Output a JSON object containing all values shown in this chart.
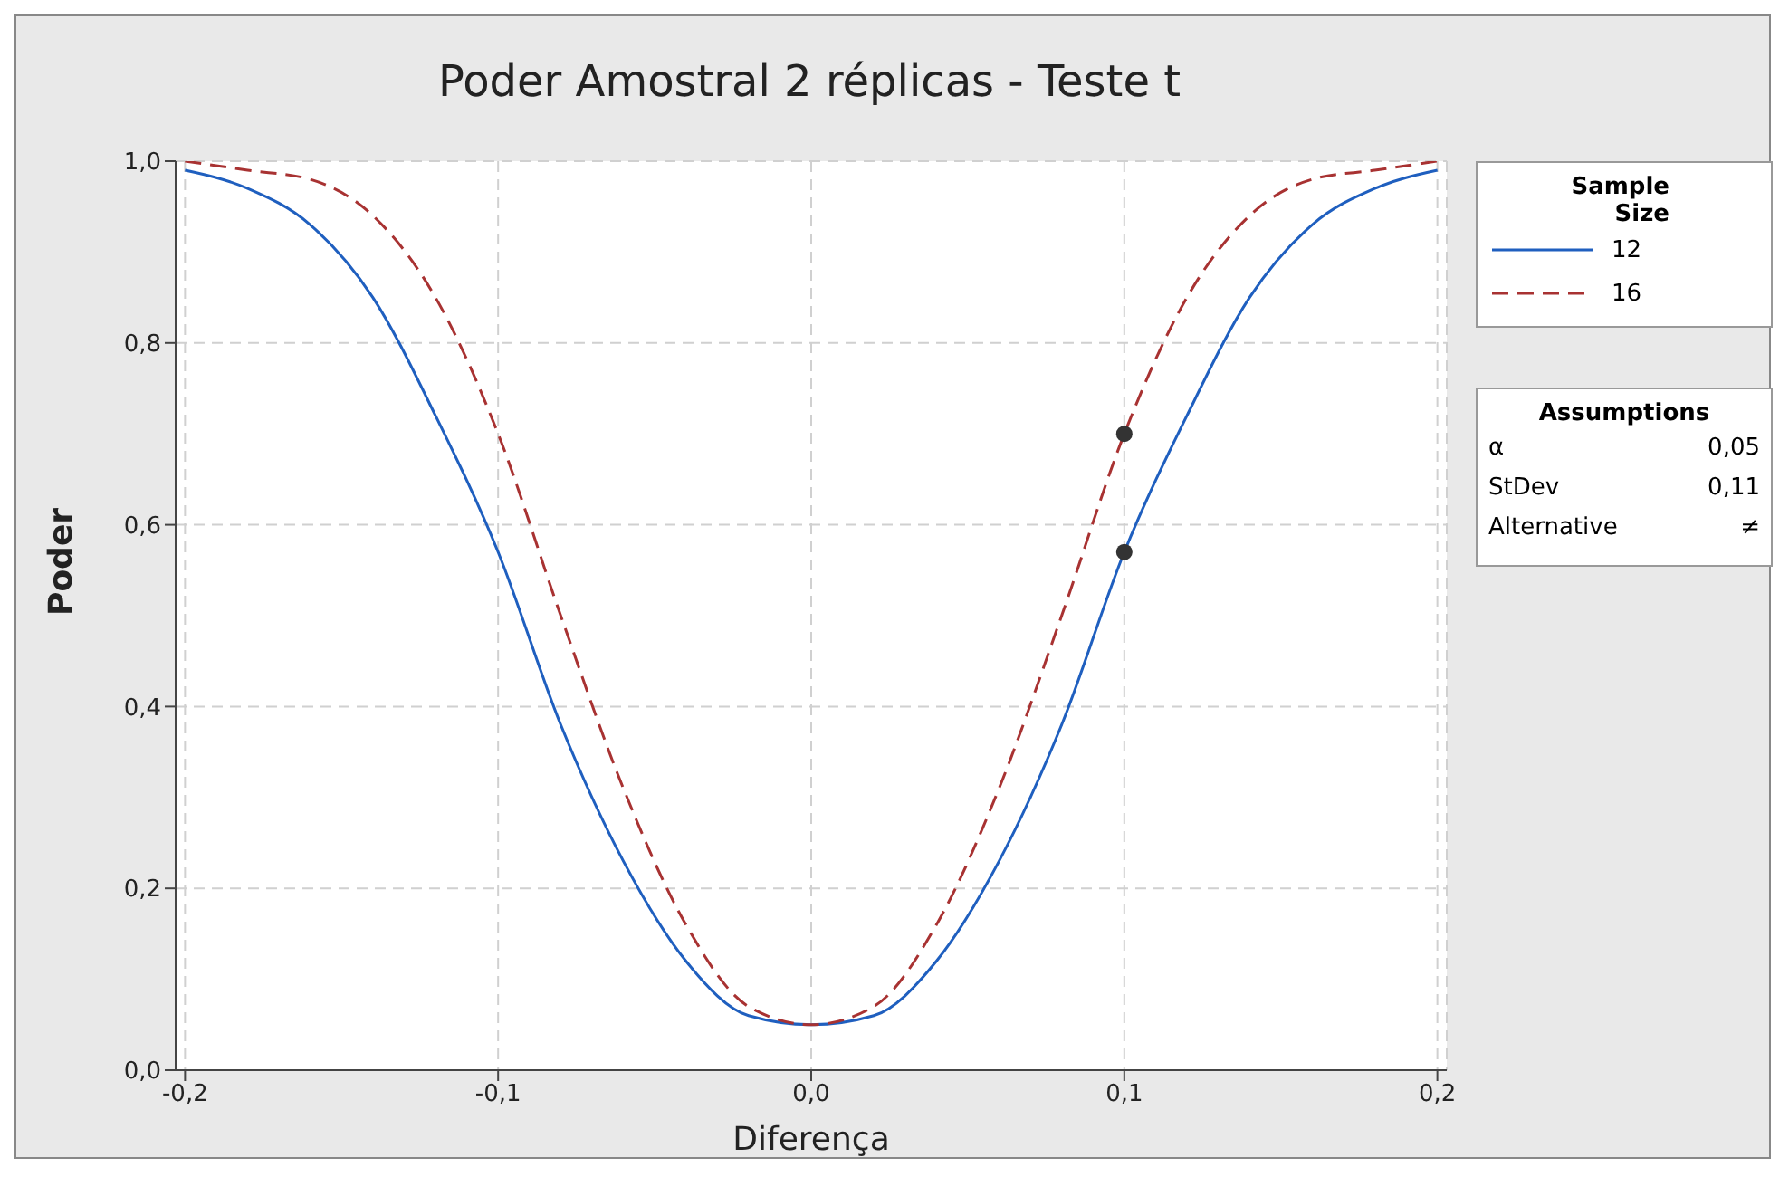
{
  "chart_data": {
    "type": "line",
    "title": "Poder Amostral 2 réplicas - Teste t",
    "xlabel": "Diferença",
    "ylabel": "Poder",
    "legend_title": "Sample Size",
    "x": [
      -0.2,
      -0.18,
      -0.16,
      -0.14,
      -0.12,
      -0.1,
      -0.08,
      -0.06,
      -0.04,
      -0.02,
      0,
      0.02,
      0.04,
      0.06,
      0.08,
      0.1,
      0.12,
      0.14,
      0.16,
      0.18,
      0.2
    ],
    "series": [
      {
        "name": "12",
        "color": "#1f5fbf",
        "line_style": "solid",
        "values": [
          0.99,
          0.97,
          0.93,
          0.85,
          0.72,
          0.57,
          0.38,
          0.23,
          0.12,
          0.06,
          0.05,
          0.06,
          0.12,
          0.23,
          0.38,
          0.57,
          0.72,
          0.85,
          0.93,
          0.97,
          0.99
        ]
      },
      {
        "name": "16",
        "color": "#a83232",
        "line_style": "dashed",
        "values": [
          1.0,
          0.99,
          0.98,
          0.94,
          0.85,
          0.7,
          0.5,
          0.31,
          0.16,
          0.07,
          0.05,
          0.07,
          0.16,
          0.31,
          0.5,
          0.7,
          0.85,
          0.94,
          0.98,
          0.99,
          1.0
        ]
      },
      {
        "type": "scatter",
        "color": "#333333",
        "marker": "circle",
        "x": [
          0.1,
          0.1
        ],
        "values": [
          0.57,
          0.7
        ]
      }
    ],
    "xlim": [
      -0.203,
      0.203
    ],
    "ylim": [
      0,
      1
    ],
    "xticks": [
      {
        "value": -0.2,
        "label": "-0,2"
      },
      {
        "value": -0.1,
        "label": "-0,1"
      },
      {
        "value": 0,
        "label": "0,0"
      },
      {
        "value": 0.1,
        "label": "0,1"
      },
      {
        "value": 0.2,
        "label": "0,2"
      }
    ],
    "yticks": [
      {
        "value": 0,
        "label": "0,0"
      },
      {
        "value": 0.2,
        "label": "0,2"
      },
      {
        "value": 0.4,
        "label": "0,4"
      },
      {
        "value": 0.6,
        "label": "0,6"
      },
      {
        "value": 0.8,
        "label": "0,8"
      },
      {
        "value": 1,
        "label": "1,0"
      }
    ],
    "grid": true,
    "legend": "right",
    "marker": "none",
    "annotations": [
      "Assumptions",
      "α",
      "0,05",
      "StDev",
      "0,11",
      "Alternative",
      "≠"
    ]
  }
}
